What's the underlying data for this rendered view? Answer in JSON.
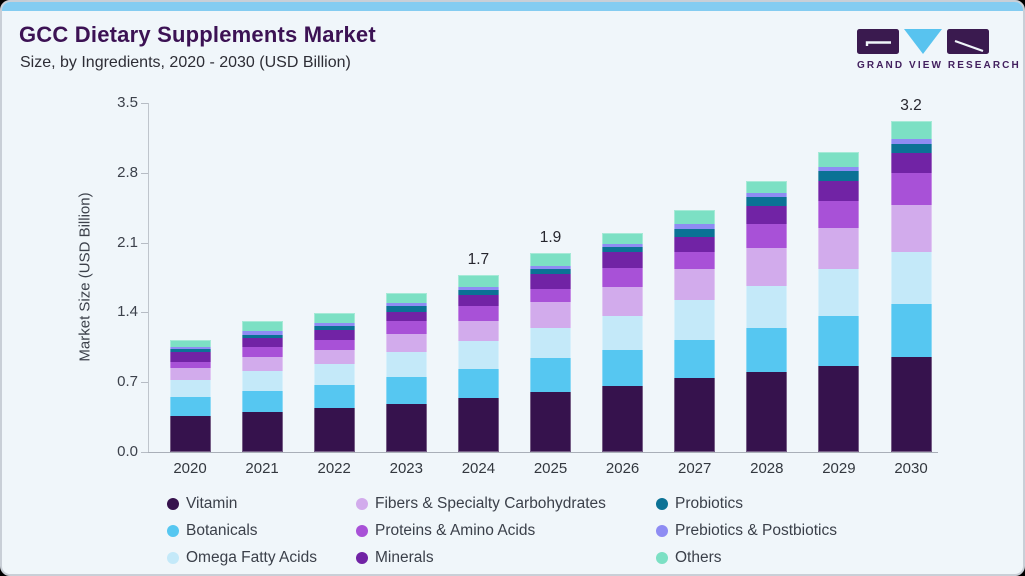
{
  "header": {
    "title": "GCC Dietary Supplements Market",
    "subtitle": "Size, by Ingredients, 2020 - 2030 (USD Billion)"
  },
  "logo": {
    "brand": "GRAND VIEW RESEARCH"
  },
  "colors": {
    "accent_bar": "#84ccf1",
    "card_background": "#f0f6fa",
    "title_text": "#3c1254",
    "axis_text": "#3c414b"
  },
  "chart_data": {
    "type": "bar",
    "stacked": true,
    "title": "GCC Dietary Supplements Market Size, by Ingredients, 2020 - 2030 (USD Billion)",
    "xlabel": "",
    "ylabel": "Market Size (USD Billion)",
    "ylim": [
      0,
      3.5
    ],
    "yticks": [
      "0.0",
      "0.7",
      "1.4",
      "2.1",
      "2.8",
      "3.5"
    ],
    "grid": false,
    "legend_position": "bottom",
    "categories": [
      "2020",
      "2021",
      "2022",
      "2023",
      "2024",
      "2025",
      "2026",
      "2027",
      "2028",
      "2029",
      "2030"
    ],
    "series": [
      {
        "name": "Vitamin",
        "color": "#36124d",
        "values": [
          0.35,
          0.38,
          0.42,
          0.46,
          0.52,
          0.58,
          0.63,
          0.71,
          0.77,
          0.83,
          0.91
        ]
      },
      {
        "name": "Botanicals",
        "color": "#56c7f1",
        "values": [
          0.18,
          0.21,
          0.22,
          0.26,
          0.28,
          0.32,
          0.35,
          0.37,
          0.42,
          0.48,
          0.51
        ]
      },
      {
        "name": "Omega Fatty Acids",
        "color": "#c4e9f9",
        "values": [
          0.16,
          0.19,
          0.21,
          0.24,
          0.27,
          0.29,
          0.33,
          0.38,
          0.41,
          0.45,
          0.5
        ]
      },
      {
        "name": "Fibers & Specialty Carbohydrates",
        "color": "#d2abec",
        "values": [
          0.12,
          0.13,
          0.13,
          0.18,
          0.19,
          0.25,
          0.28,
          0.3,
          0.36,
          0.39,
          0.46
        ]
      },
      {
        "name": "Proteins & Amino Acids",
        "color": "#a851d7",
        "values": [
          0.06,
          0.1,
          0.1,
          0.12,
          0.14,
          0.13,
          0.18,
          0.16,
          0.23,
          0.26,
          0.3
        ]
      },
      {
        "name": "Minerals",
        "color": "#7123a5",
        "values": [
          0.09,
          0.09,
          0.09,
          0.09,
          0.11,
          0.14,
          0.15,
          0.15,
          0.18,
          0.2,
          0.2
        ]
      },
      {
        "name": "Probiotics",
        "color": "#0b7295",
        "values": [
          0.03,
          0.03,
          0.04,
          0.05,
          0.05,
          0.05,
          0.05,
          0.08,
          0.08,
          0.09,
          0.08
        ]
      },
      {
        "name": "Prebiotics & Postbiotics",
        "color": "#8e8cf3",
        "values": [
          0.02,
          0.03,
          0.03,
          0.03,
          0.03,
          0.03,
          0.03,
          0.04,
          0.04,
          0.04,
          0.05
        ]
      },
      {
        "name": "Others",
        "color": "#7ce0c4",
        "values": [
          0.07,
          0.1,
          0.1,
          0.1,
          0.11,
          0.12,
          0.11,
          0.14,
          0.12,
          0.14,
          0.17
        ]
      }
    ],
    "bar_labels": {
      "2024": "1.7",
      "2025": "1.9",
      "2030": "3.2"
    }
  }
}
